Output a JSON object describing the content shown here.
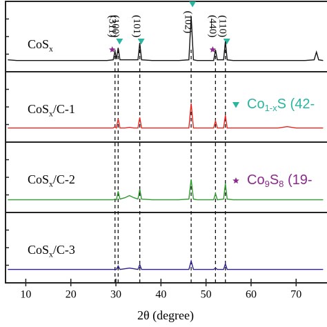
{
  "chart_data": {
    "type": "line",
    "x_label": "2θ (degree)",
    "xlim": [
      5.5,
      76.85
    ],
    "xticks": [
      10,
      20,
      30,
      40,
      50,
      60,
      70
    ],
    "ylim": [
      0,
      100
    ],
    "x": [
      6,
      8,
      10,
      12,
      14,
      16,
      18,
      20,
      22,
      24,
      26,
      28,
      29.4,
      29.8,
      30.1,
      30.5,
      30.9,
      32,
      33,
      34,
      34.9,
      35.3,
      35.7,
      38,
      40,
      42,
      44,
      46.2,
      46.7,
      47.2,
      48,
      50,
      51.7,
      52.1,
      52.5,
      53.9,
      54.3,
      54.7,
      56,
      58,
      60,
      62,
      64,
      66,
      68,
      70,
      72,
      74,
      74.5,
      75,
      76
    ],
    "series": [
      {
        "name": [
          "CoS",
          "x"
        ],
        "color": "#111111",
        "values": [
          17,
          16,
          16,
          16,
          16,
          16,
          16,
          16,
          16,
          16,
          16,
          16,
          17,
          29,
          18,
          34,
          17,
          17,
          17,
          17,
          17,
          41,
          17,
          16,
          16,
          16,
          16,
          17,
          79,
          17,
          16,
          16,
          16,
          31,
          17,
          17,
          43,
          17,
          16,
          16,
          16,
          16,
          16,
          16,
          16,
          16,
          16,
          17,
          28,
          17,
          16
        ]
      },
      {
        "name": [
          "CoS",
          "x",
          "/C-1"
        ],
        "color": "#e8231c",
        "values": [
          20,
          20,
          20,
          20,
          20,
          20,
          20,
          20,
          20,
          20,
          20,
          20,
          20,
          22,
          20,
          33,
          20,
          20,
          21,
          20,
          20,
          35,
          20,
          20,
          20,
          20,
          20,
          20,
          55,
          20,
          20,
          20,
          20,
          30,
          20,
          20,
          38,
          20,
          20,
          20,
          20,
          20,
          20,
          20,
          22,
          20,
          20,
          20,
          20,
          20,
          20
        ]
      },
      {
        "name": [
          "CoS",
          "x",
          "/C-2"
        ],
        "color": "#2e9a2e",
        "values": [
          18,
          18,
          18,
          18,
          18,
          18,
          18,
          18,
          18,
          18,
          18,
          18,
          18,
          19,
          18,
          30,
          19,
          21,
          24,
          21,
          19,
          33,
          19,
          18,
          18,
          18,
          18,
          19,
          47,
          19,
          18,
          18,
          18,
          27,
          18,
          19,
          41,
          19,
          18,
          18,
          18,
          18,
          18,
          18,
          18,
          18,
          18,
          18,
          18,
          18,
          18
        ]
      },
      {
        "name": [
          "CoS",
          "x",
          "/C-3"
        ],
        "color": "#2a1f8c",
        "values": [
          19,
          19,
          19,
          19,
          19,
          19,
          19,
          19,
          19,
          19,
          19,
          19,
          19,
          19,
          19,
          24,
          19,
          20,
          21,
          20,
          19,
          26,
          19,
          19,
          19,
          19,
          19,
          19,
          31,
          19,
          19,
          19,
          19,
          21,
          19,
          19,
          27,
          19,
          19,
          19,
          19,
          19,
          19,
          19,
          19,
          19,
          19,
          19,
          19,
          19,
          19
        ]
      }
    ],
    "annotations": [
      {
        "x": 29.8,
        "label": "(311)",
        "marker": "star"
      },
      {
        "x": 30.5,
        "label": "(100)",
        "marker": "triangle"
      },
      {
        "x": 35.3,
        "label": "(101)",
        "marker": "triangle"
      },
      {
        "x": 46.7,
        "label": "(102)",
        "marker": "triangle"
      },
      {
        "x": 52.1,
        "label": "(440)",
        "marker": "star"
      },
      {
        "x": 54.3,
        "label": "(110)",
        "marker": "triangle"
      }
    ],
    "legend": [
      {
        "marker": "triangle",
        "color": "#2ab5a0",
        "label": [
          "Co",
          "1-x",
          "S (42-"
        ]
      },
      {
        "marker": "star",
        "color": "#8b2a8b",
        "label": [
          "Co",
          "9",
          "S",
          "8",
          " (19-"
        ]
      }
    ]
  }
}
